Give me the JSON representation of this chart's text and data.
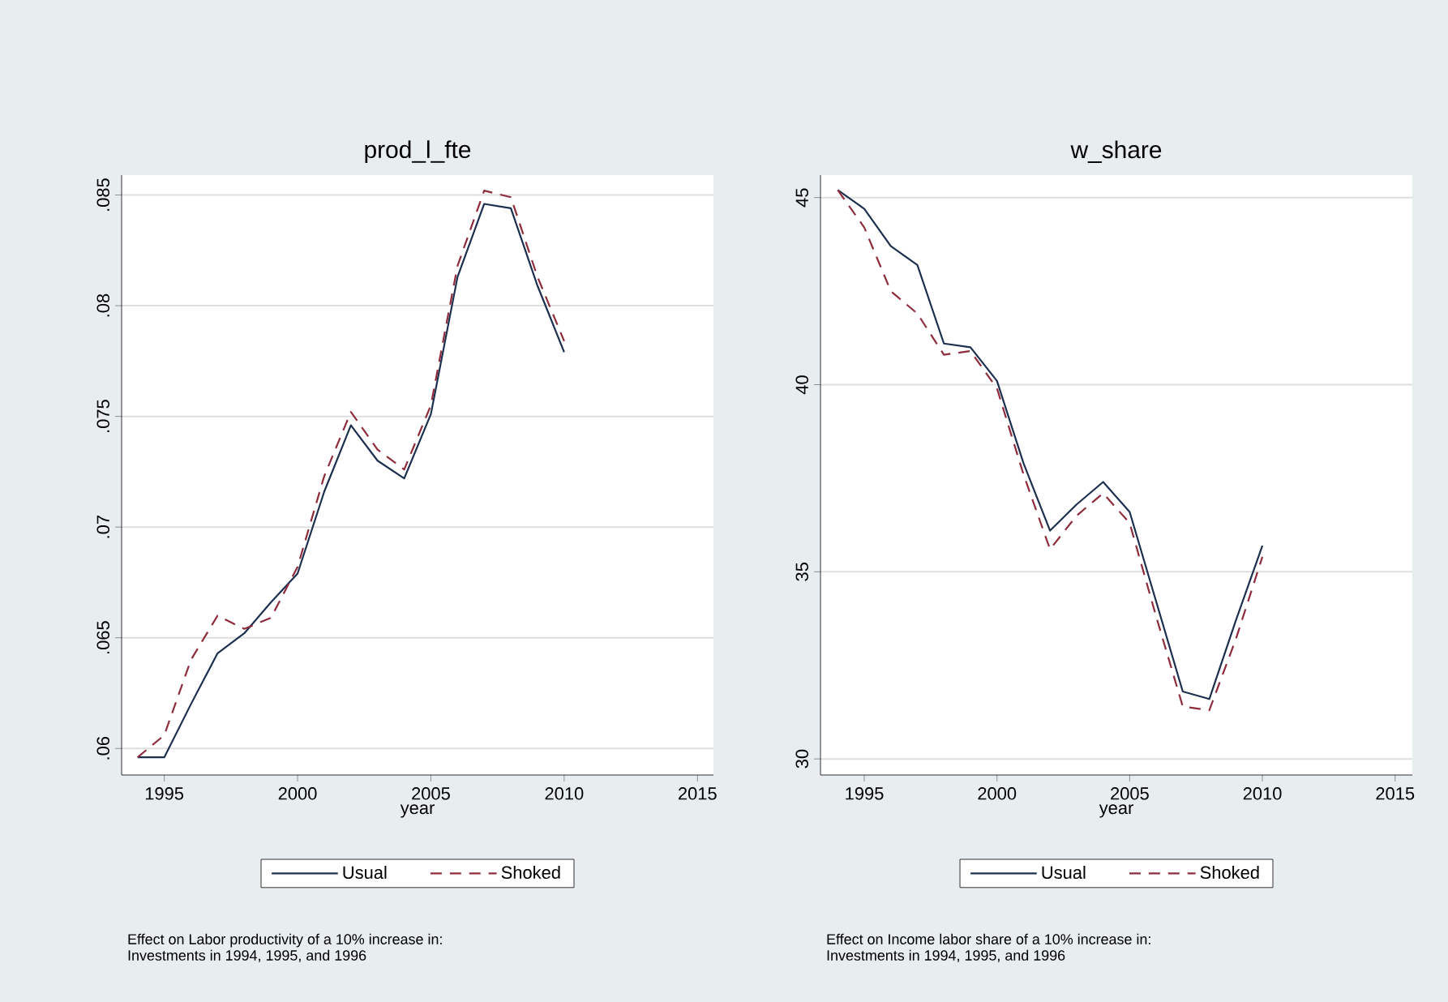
{
  "chart_data": [
    {
      "type": "line",
      "title": "prod_l_fte",
      "xlabel": "year",
      "x": [
        1994,
        1995,
        1996,
        1997,
        1998,
        1999,
        2000,
        2001,
        2002,
        2003,
        2004,
        2005,
        2006,
        2007,
        2008,
        2009,
        2010
      ],
      "series": [
        {
          "name": "Usual",
          "color": "#1c2f4f",
          "line_style": "solid",
          "values": [
            0.0596,
            0.0596,
            0.062,
            0.0643,
            0.0652,
            0.0666,
            0.0679,
            0.0716,
            0.0746,
            0.073,
            0.0722,
            0.0751,
            0.0813,
            0.0846,
            0.0844,
            0.0809,
            0.0779
          ]
        },
        {
          "name": "Shoked",
          "color": "#8e2c3c",
          "line_style": "dashed",
          "values": [
            0.0596,
            0.0606,
            0.064,
            0.066,
            0.0654,
            0.0659,
            0.0682,
            0.0723,
            0.0752,
            0.0735,
            0.0726,
            0.0755,
            0.0818,
            0.0852,
            0.0849,
            0.0813,
            0.0784
          ]
        }
      ],
      "xlim": [
        1993.4,
        2015.6
      ],
      "ylim": [
        0.0588,
        0.0859
      ],
      "xticks": [
        1995,
        2000,
        2005,
        2010,
        2015
      ],
      "yticks": [
        {
          "value": 0.06,
          "label": ".06"
        },
        {
          "value": 0.065,
          "label": ".065"
        },
        {
          "value": 0.07,
          "label": ".07"
        },
        {
          "value": 0.075,
          "label": ".075"
        },
        {
          "value": 0.08,
          "label": ".08"
        },
        {
          "value": 0.085,
          "label": ".085"
        }
      ],
      "grid": "y",
      "legend": "bottom",
      "annotations": [
        "Effect on Labor productivity of a 10% increase in:",
        "Investments in 1994, 1995, and 1996"
      ]
    },
    {
      "type": "line",
      "title": "w_share",
      "xlabel": "year",
      "x": [
        1994,
        1995,
        1996,
        1997,
        1998,
        1999,
        2000,
        2001,
        2002,
        2003,
        2004,
        2005,
        2006,
        2007,
        2008,
        2009,
        2010
      ],
      "series": [
        {
          "name": "Usual",
          "color": "#1c2f4f",
          "line_style": "solid",
          "values": [
            45.2,
            44.7,
            43.7,
            43.2,
            41.1,
            41.0,
            40.1,
            37.9,
            36.1,
            36.8,
            37.4,
            36.6,
            34.2,
            31.8,
            31.6,
            33.7,
            35.7
          ]
        },
        {
          "name": "Shoked",
          "color": "#8e2c3c",
          "line_style": "dashed",
          "values": [
            45.2,
            44.2,
            42.5,
            41.9,
            40.8,
            40.9,
            39.9,
            37.6,
            35.6,
            36.5,
            37.1,
            36.3,
            33.8,
            31.4,
            31.3,
            33.2,
            35.4
          ]
        }
      ],
      "xlim": [
        1993.35,
        2015.65
      ],
      "ylim": [
        29.57,
        45.6
      ],
      "xticks": [
        1995,
        2000,
        2005,
        2010,
        2015
      ],
      "yticks": [
        30,
        35,
        40,
        45
      ],
      "grid": "y",
      "legend": "bottom",
      "annotations": [
        "Effect on Income labor share of a 10% increase in:",
        "Investments in 1994, 1995, and 1996"
      ]
    }
  ]
}
